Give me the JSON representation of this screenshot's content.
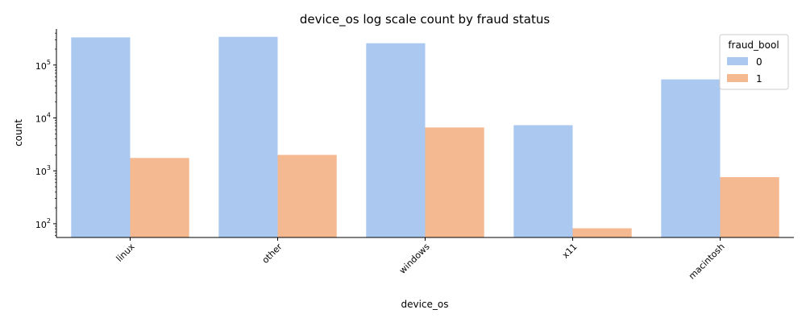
{
  "chart_data": {
    "type": "bar",
    "title": "device_os log scale count by fraud status",
    "xlabel": "device_os",
    "ylabel": "count",
    "yscale": "log",
    "ylim": [
      55,
      480000
    ],
    "categories": [
      "linux",
      "other",
      "windows",
      "x11",
      "macintosh"
    ],
    "series": [
      {
        "name": "0",
        "color": "#abc9f0",
        "values": [
          333000,
          341000,
          258000,
          7300,
          53500
        ]
      },
      {
        "name": "1",
        "color": "#f5b992",
        "values": [
          1750,
          2000,
          6600,
          82,
          760
        ]
      }
    ],
    "yticks": [
      {
        "value": 100,
        "base": "10",
        "exp": "2"
      },
      {
        "value": 1000,
        "base": "10",
        "exp": "3"
      },
      {
        "value": 10000,
        "base": "10",
        "exp": "4"
      },
      {
        "value": 100000,
        "base": "10",
        "exp": "5"
      }
    ],
    "legend": {
      "title": "fraud_bool",
      "position": "top-right"
    },
    "grid": false
  }
}
